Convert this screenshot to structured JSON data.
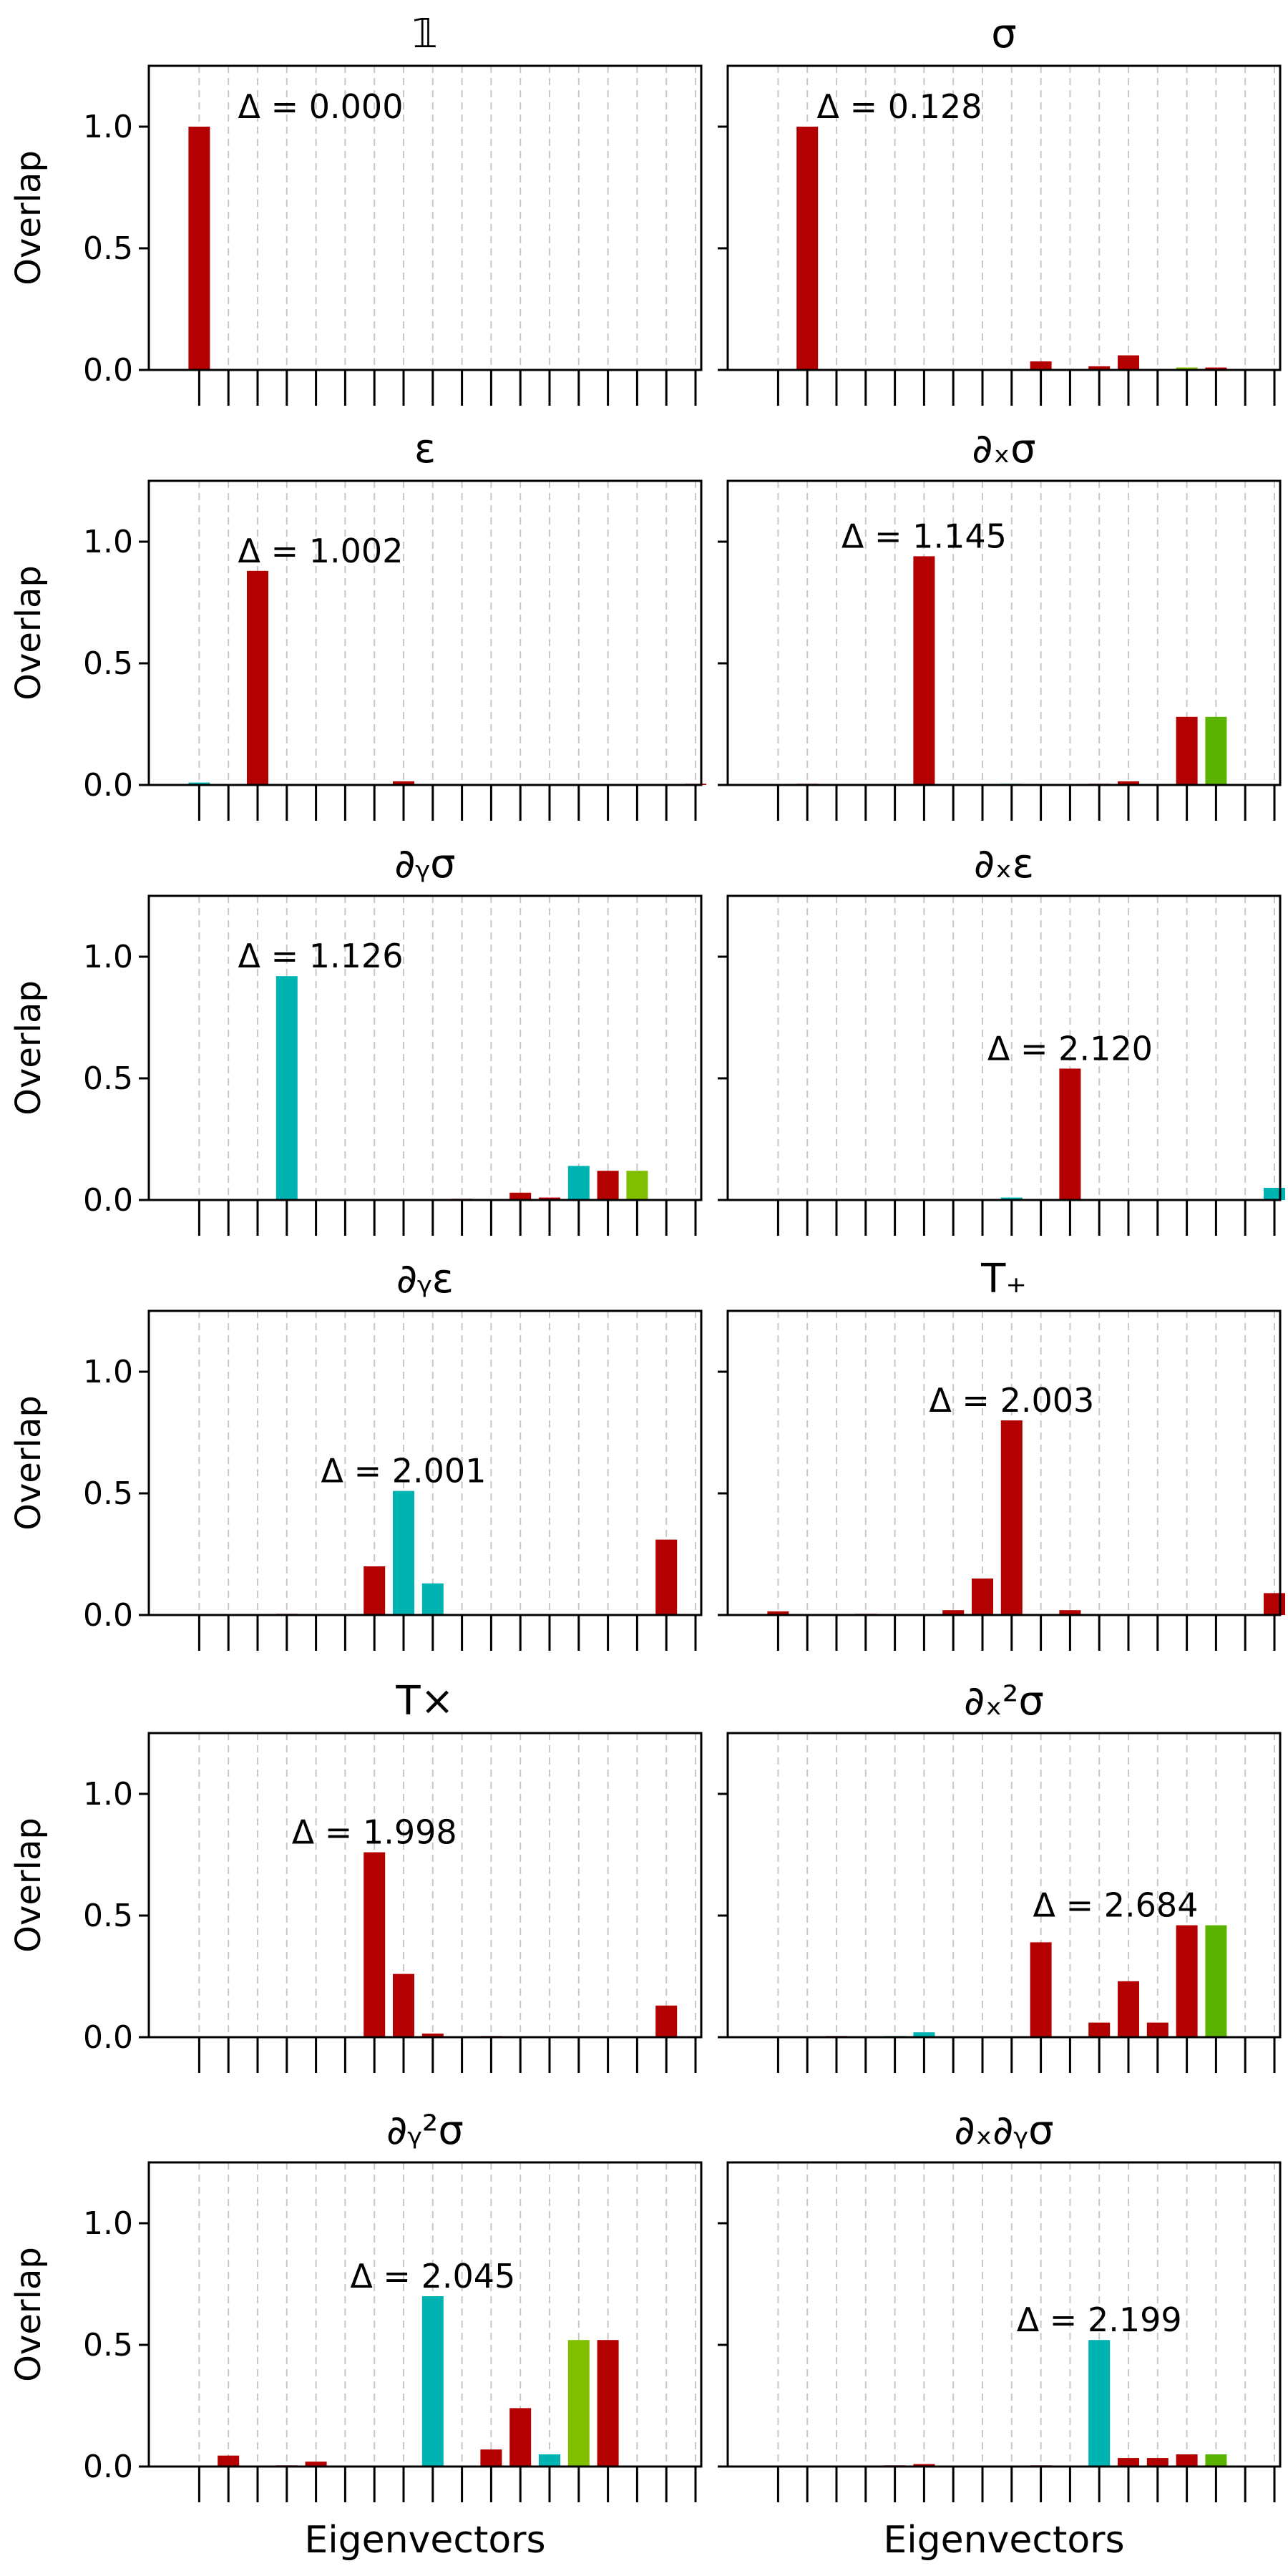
{
  "figure": {
    "ylabel": "Overlap",
    "xlabel": "Eigenvectors",
    "yticks": [
      "0.0",
      "0.5",
      "1.0"
    ]
  },
  "colors": {
    "red": "#b30000",
    "cyan": "#00b3b3",
    "green": "#5ab300",
    "ygreen": "#7fbf00"
  },
  "chart_data": [
    {
      "type": "bar",
      "title": "𝟙",
      "annotation": "Δ = 0.000",
      "ylim": [
        0,
        1.25
      ],
      "n_bars": 18,
      "bars": [
        [
          0,
          1.0,
          "red"
        ]
      ]
    },
    {
      "type": "bar",
      "title": "σ",
      "annotation": "Δ = 0.128",
      "ylim": [
        0,
        1.25
      ],
      "n_bars": 18,
      "bars": [
        [
          1,
          1.0,
          "red"
        ],
        [
          9,
          0.035,
          "red"
        ],
        [
          11,
          0.015,
          "red"
        ],
        [
          12,
          0.06,
          "red"
        ],
        [
          14,
          0.01,
          "ygreen"
        ],
        [
          15,
          0.01,
          "red"
        ]
      ]
    },
    {
      "type": "bar",
      "title": "ε",
      "annotation": "Δ = 1.002",
      "ylim": [
        0,
        1.25
      ],
      "n_bars": 18,
      "bars": [
        [
          0,
          0.01,
          "cyan"
        ],
        [
          2,
          0.88,
          "red"
        ],
        [
          7,
          0.015,
          "red"
        ],
        [
          17,
          0.005,
          "red"
        ]
      ]
    },
    {
      "type": "bar",
      "title": "∂ₓσ",
      "annotation": "Δ = 1.145",
      "ylim": [
        0,
        1.25
      ],
      "n_bars": 18,
      "bars": [
        [
          1,
          0.005,
          "red"
        ],
        [
          5,
          0.94,
          "red"
        ],
        [
          8,
          0.005,
          "cyan"
        ],
        [
          11,
          0.005,
          "red"
        ],
        [
          12,
          0.015,
          "red"
        ],
        [
          14,
          0.28,
          "red"
        ],
        [
          15,
          0.28,
          "green"
        ]
      ]
    },
    {
      "type": "bar",
      "title": "∂ᵧσ",
      "annotation": "Δ = 1.126",
      "ylim": [
        0,
        1.25
      ],
      "n_bars": 18,
      "bars": [
        [
          3,
          0.92,
          "cyan"
        ],
        [
          9,
          0.005,
          "red"
        ],
        [
          11,
          0.03,
          "red"
        ],
        [
          12,
          0.01,
          "red"
        ],
        [
          13,
          0.14,
          "cyan"
        ],
        [
          14,
          0.12,
          "red"
        ],
        [
          15,
          0.12,
          "ygreen"
        ]
      ]
    },
    {
      "type": "bar",
      "title": "∂ₓε",
      "annotation": "Δ = 2.120",
      "ylim": [
        0,
        1.25
      ],
      "n_bars": 18,
      "bars": [
        [
          8,
          0.01,
          "cyan"
        ],
        [
          10,
          0.54,
          "red"
        ],
        [
          17,
          0.05,
          "cyan"
        ]
      ]
    },
    {
      "type": "bar",
      "title": "∂ᵧε",
      "annotation": "Δ = 2.001",
      "ylim": [
        0,
        1.25
      ],
      "n_bars": 18,
      "bars": [
        [
          3,
          0.005,
          "red"
        ],
        [
          6,
          0.2,
          "red"
        ],
        [
          7,
          0.51,
          "cyan"
        ],
        [
          8,
          0.13,
          "cyan"
        ],
        [
          16,
          0.31,
          "red"
        ]
      ]
    },
    {
      "type": "bar",
      "title": "T₊",
      "annotation": "Δ = 2.003",
      "ylim": [
        0,
        1.25
      ],
      "n_bars": 18,
      "bars": [
        [
          0,
          0.015,
          "red"
        ],
        [
          3,
          0.005,
          "red"
        ],
        [
          6,
          0.02,
          "red"
        ],
        [
          7,
          0.15,
          "red"
        ],
        [
          8,
          0.8,
          "red"
        ],
        [
          10,
          0.02,
          "red"
        ],
        [
          17,
          0.09,
          "red"
        ]
      ]
    },
    {
      "type": "bar",
      "title": "T×",
      "annotation": "Δ = 1.998",
      "ylim": [
        0,
        1.25
      ],
      "n_bars": 18,
      "bars": [
        [
          6,
          0.76,
          "red"
        ],
        [
          7,
          0.26,
          "red"
        ],
        [
          8,
          0.015,
          "red"
        ],
        [
          10,
          0.005,
          "red"
        ],
        [
          16,
          0.13,
          "red"
        ]
      ]
    },
    {
      "type": "bar",
      "title": "∂ₓ²σ",
      "annotation": "Δ = 2.684",
      "ylim": [
        0,
        1.25
      ],
      "n_bars": 18,
      "bars": [
        [
          2,
          0.005,
          "red"
        ],
        [
          4,
          0.005,
          "cyan"
        ],
        [
          5,
          0.02,
          "cyan"
        ],
        [
          9,
          0.39,
          "red"
        ],
        [
          11,
          0.06,
          "red"
        ],
        [
          12,
          0.23,
          "red"
        ],
        [
          13,
          0.06,
          "red"
        ],
        [
          14,
          0.46,
          "red"
        ],
        [
          15,
          0.46,
          "green"
        ]
      ]
    },
    {
      "type": "bar",
      "title": "∂ᵧ²σ",
      "annotation": "Δ = 2.045",
      "ylim": [
        0,
        1.25
      ],
      "n_bars": 18,
      "bars": [
        [
          1,
          0.045,
          "red"
        ],
        [
          3,
          0.005,
          "red"
        ],
        [
          4,
          0.02,
          "red"
        ],
        [
          8,
          0.7,
          "cyan"
        ],
        [
          10,
          0.07,
          "red"
        ],
        [
          11,
          0.24,
          "red"
        ],
        [
          12,
          0.05,
          "cyan"
        ],
        [
          13,
          0.52,
          "ygreen"
        ],
        [
          14,
          0.52,
          "red"
        ]
      ]
    },
    {
      "type": "bar",
      "title": "∂ₓ∂ᵧσ",
      "annotation": "Δ = 2.199",
      "ylim": [
        0,
        1.25
      ],
      "n_bars": 18,
      "bars": [
        [
          4,
          0.005,
          "red"
        ],
        [
          5,
          0.01,
          "red"
        ],
        [
          9,
          0.005,
          "red"
        ],
        [
          11,
          0.52,
          "cyan"
        ],
        [
          12,
          0.035,
          "red"
        ],
        [
          13,
          0.035,
          "red"
        ],
        [
          14,
          0.05,
          "red"
        ],
        [
          15,
          0.05,
          "green"
        ]
      ]
    }
  ]
}
